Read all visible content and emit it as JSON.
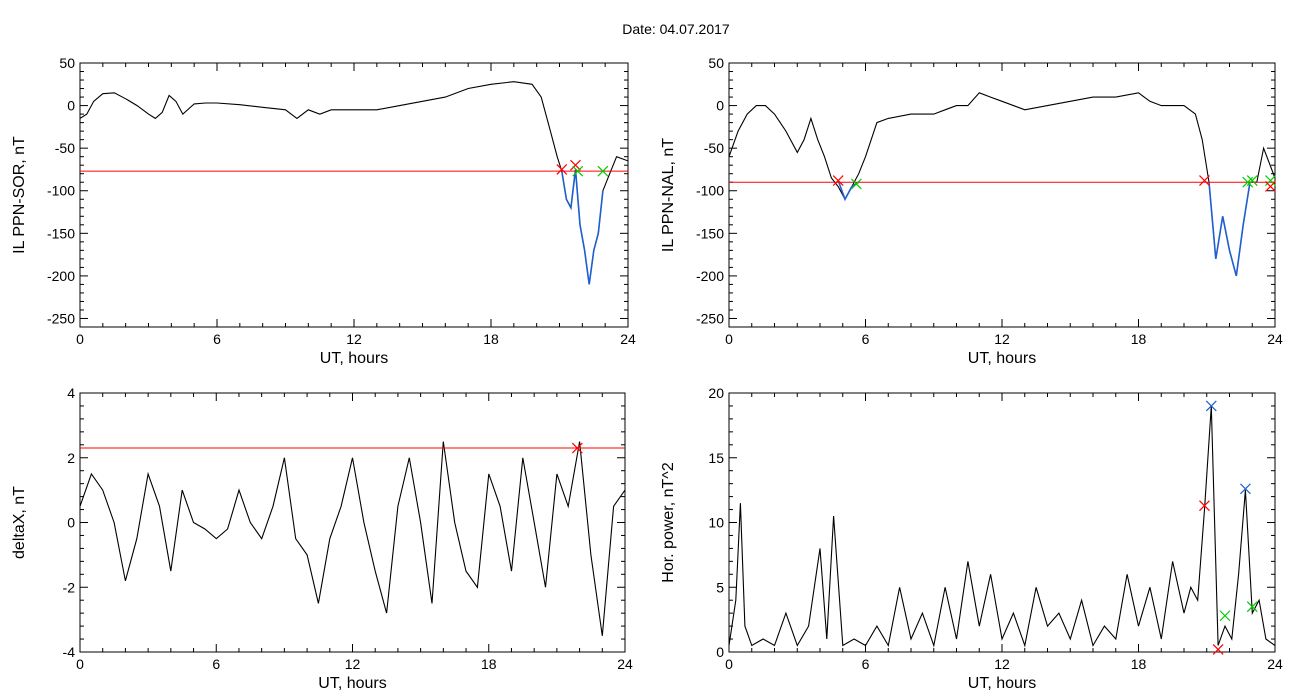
{
  "figure": {
    "title": "Date:  04.07.2017"
  },
  "chart_data": [
    {
      "type": "line",
      "id": "il-ppn-sor",
      "title": "",
      "xlabel": "UT, hours",
      "ylabel": "IL PPN-SOR, nT",
      "xlim": [
        0,
        24
      ],
      "ylim": [
        -260,
        50
      ],
      "xticks": [
        0,
        6,
        12,
        18,
        24
      ],
      "yticks": [
        -250,
        -200,
        -150,
        -100,
        -50,
        0,
        50
      ],
      "grid": false,
      "threshold": -77,
      "colors": {
        "trace": "#000000",
        "event": "#1f5fd0",
        "threshold": "#ff0000",
        "start": "#ff0000",
        "end": "#00cc00"
      },
      "x": [
        0,
        0.3,
        0.6,
        1,
        1.5,
        2,
        2.5,
        3,
        3.3,
        3.6,
        3.9,
        4.2,
        4.5,
        5,
        5.5,
        6,
        7,
        8,
        9,
        9.5,
        10,
        10.5,
        11,
        12,
        13,
        14,
        15,
        16,
        17,
        18,
        19,
        19.8,
        20.2,
        20.6,
        20.9,
        21.1,
        21.3,
        21.5,
        21.7,
        21.9,
        22.1,
        22.3,
        22.5,
        22.7,
        22.9,
        23.2,
        23.5,
        24
      ],
      "y": [
        -15,
        -10,
        5,
        14,
        15,
        8,
        0,
        -10,
        -15,
        -8,
        12,
        5,
        -10,
        2,
        3,
        3,
        1,
        -2,
        -5,
        -15,
        -5,
        -10,
        -5,
        -5,
        -5,
        0,
        5,
        10,
        20,
        25,
        28,
        25,
        10,
        -30,
        -60,
        -77,
        -110,
        -120,
        -75,
        -140,
        -170,
        -210,
        -170,
        -150,
        -100,
        -80,
        -60,
        -65
      ],
      "event_segments": [
        {
          "x": [
            21.1,
            21.3,
            21.5,
            21.7,
            21.9,
            22.1,
            22.3,
            22.5,
            22.7,
            22.9
          ],
          "y": [
            -77,
            -110,
            -120,
            -75,
            -140,
            -170,
            -210,
            -170,
            -150,
            -100
          ]
        }
      ],
      "markers": [
        {
          "x": 21.1,
          "y": -75,
          "color": "#ff0000"
        },
        {
          "x": 21.7,
          "y": -70,
          "color": "#ff0000"
        },
        {
          "x": 21.8,
          "y": -77,
          "color": "#00cc00"
        },
        {
          "x": 22.9,
          "y": -77,
          "color": "#00cc00"
        }
      ]
    },
    {
      "type": "line",
      "id": "il-ppn-nal",
      "title": "",
      "xlabel": "UT, hours",
      "ylabel": "IL PPN-NAL, nT",
      "xlim": [
        0,
        24
      ],
      "ylim": [
        -260,
        50
      ],
      "xticks": [
        0,
        6,
        12,
        18,
        24
      ],
      "yticks": [
        -250,
        -200,
        -150,
        -100,
        -50,
        0,
        50
      ],
      "grid": false,
      "threshold": -90,
      "colors": {
        "trace": "#000000",
        "event": "#1f5fd0",
        "threshold": "#ff0000",
        "start": "#ff0000",
        "end": "#00cc00"
      },
      "x": [
        0,
        0.4,
        0.8,
        1.2,
        1.6,
        2,
        2.5,
        3,
        3.3,
        3.6,
        3.9,
        4.2,
        4.5,
        4.8,
        5.1,
        5.4,
        5.7,
        6,
        6.5,
        7,
        8,
        9,
        9.5,
        10,
        10.5,
        11,
        11.5,
        12,
        13,
        14,
        15,
        16,
        17,
        18,
        18.5,
        19,
        19.5,
        20,
        20.5,
        20.8,
        21.1,
        21.4,
        21.7,
        22,
        22.3,
        22.6,
        22.9,
        23.2,
        23.5,
        24
      ],
      "y": [
        -60,
        -30,
        -10,
        0,
        0,
        -10,
        -30,
        -55,
        -40,
        -15,
        -40,
        -60,
        -85,
        -95,
        -110,
        -95,
        -80,
        -60,
        -20,
        -15,
        -10,
        -10,
        -5,
        0,
        0,
        15,
        10,
        5,
        -5,
        0,
        5,
        10,
        10,
        15,
        5,
        0,
        0,
        0,
        -10,
        -40,
        -90,
        -180,
        -130,
        -170,
        -200,
        -140,
        -90,
        -90,
        -50,
        -85
      ],
      "event_segments": [
        {
          "x": [
            4.8,
            5.1,
            5.4,
            5.7
          ],
          "y": [
            -88,
            -110,
            -95,
            -90
          ]
        },
        {
          "x": [
            21.1,
            21.4,
            21.7,
            22,
            22.3,
            22.6,
            22.9
          ],
          "y": [
            -90,
            -180,
            -130,
            -170,
            -200,
            -140,
            -90
          ]
        }
      ],
      "markers": [
        {
          "x": 4.8,
          "y": -88,
          "color": "#ff0000"
        },
        {
          "x": 5.6,
          "y": -92,
          "color": "#00cc00"
        },
        {
          "x": 20.9,
          "y": -88,
          "color": "#ff0000"
        },
        {
          "x": 22.8,
          "y": -90,
          "color": "#00cc00"
        },
        {
          "x": 23.0,
          "y": -88,
          "color": "#00cc00"
        },
        {
          "x": 23.8,
          "y": -88,
          "color": "#00cc00"
        },
        {
          "x": 23.8,
          "y": -95,
          "color": "#ff0000"
        }
      ]
    },
    {
      "type": "line",
      "id": "deltax",
      "title": "",
      "xlabel": "UT, hours",
      "ylabel": "deltaX, nT",
      "xlim": [
        0,
        24
      ],
      "ylim": [
        -4,
        4
      ],
      "xticks": [
        0,
        6,
        12,
        18,
        24
      ],
      "yticks": [
        -4,
        -2,
        0,
        2,
        4
      ],
      "grid": false,
      "threshold": 2.3,
      "colors": {
        "trace": "#000000",
        "threshold": "#ff0000"
      },
      "x": [
        0,
        0.5,
        1,
        1.5,
        2,
        2.5,
        3,
        3.5,
        4,
        4.5,
        5,
        5.5,
        6,
        6.5,
        7,
        7.5,
        8,
        8.5,
        9,
        9.5,
        10,
        10.5,
        11,
        11.5,
        12,
        12.5,
        13,
        13.5,
        14,
        14.5,
        15,
        15.5,
        16,
        16.5,
        17,
        17.5,
        18,
        18.5,
        19,
        19.5,
        20,
        20.5,
        21,
        21.5,
        22,
        22.5,
        23,
        23.5,
        24
      ],
      "y": [
        0.5,
        1.5,
        1,
        0,
        -1.8,
        -0.5,
        1.5,
        0.5,
        -1.5,
        1,
        0,
        -0.2,
        -0.5,
        -0.2,
        1,
        0,
        -0.5,
        0.5,
        2,
        -0.5,
        -1,
        -2.5,
        -0.5,
        0.5,
        2,
        0,
        -1.5,
        -2.8,
        0.5,
        2,
        0,
        -2.5,
        2.5,
        0,
        -1.5,
        -2,
        1.5,
        0.5,
        -1.5,
        2,
        0,
        -2,
        1.5,
        0.5,
        2.5,
        -1,
        -3.5,
        0.5,
        1
      ],
      "markers": [
        {
          "x": 21.9,
          "y": 2.3,
          "color": "#ff0000"
        }
      ]
    },
    {
      "type": "line",
      "id": "hor-power",
      "title": "",
      "xlabel": "UT, hours",
      "ylabel": "Hor. power, nT^2",
      "xlim": [
        0,
        24
      ],
      "ylim": [
        0,
        20
      ],
      "xticks": [
        0,
        6,
        12,
        18,
        24
      ],
      "yticks": [
        0,
        5,
        10,
        15,
        20
      ],
      "grid": false,
      "colors": {
        "trace": "#000000"
      },
      "x": [
        0,
        0.3,
        0.5,
        0.7,
        1,
        1.5,
        2,
        2.5,
        3,
        3.5,
        4,
        4.3,
        4.6,
        5,
        5.5,
        6,
        6.5,
        7,
        7.5,
        8,
        8.5,
        9,
        9.5,
        10,
        10.5,
        11,
        11.5,
        12,
        12.5,
        13,
        13.5,
        14,
        14.5,
        15,
        15.5,
        16,
        16.5,
        17,
        17.5,
        18,
        18.5,
        19,
        19.5,
        20,
        20.3,
        20.6,
        20.9,
        21.2,
        21.5,
        21.8,
        22.1,
        22.4,
        22.7,
        23,
        23.3,
        23.6,
        24
      ],
      "y": [
        0.5,
        4,
        11.5,
        2,
        0.5,
        1,
        0.5,
        3,
        0.5,
        2,
        8,
        1,
        10.5,
        0.5,
        1,
        0.5,
        2,
        0.5,
        5,
        1,
        3,
        0.5,
        5,
        1,
        7,
        2,
        6,
        1,
        3,
        0.5,
        5,
        2,
        3,
        1,
        4,
        0.5,
        2,
        1,
        6,
        2,
        5,
        1,
        7,
        3,
        5,
        4,
        11,
        19,
        0.5,
        2,
        1,
        6,
        12.5,
        3,
        4,
        1,
        0.5
      ],
      "markers": [
        {
          "x": 20.9,
          "y": 11.3,
          "color": "#ff0000"
        },
        {
          "x": 21.2,
          "y": 19.0,
          "color": "#1f5fd0"
        },
        {
          "x": 21.5,
          "y": 0.2,
          "color": "#ff0000"
        },
        {
          "x": 21.8,
          "y": 2.8,
          "color": "#00cc00"
        },
        {
          "x": 22.7,
          "y": 12.6,
          "color": "#1f5fd0"
        },
        {
          "x": 23.0,
          "y": 3.5,
          "color": "#00cc00"
        }
      ]
    }
  ]
}
